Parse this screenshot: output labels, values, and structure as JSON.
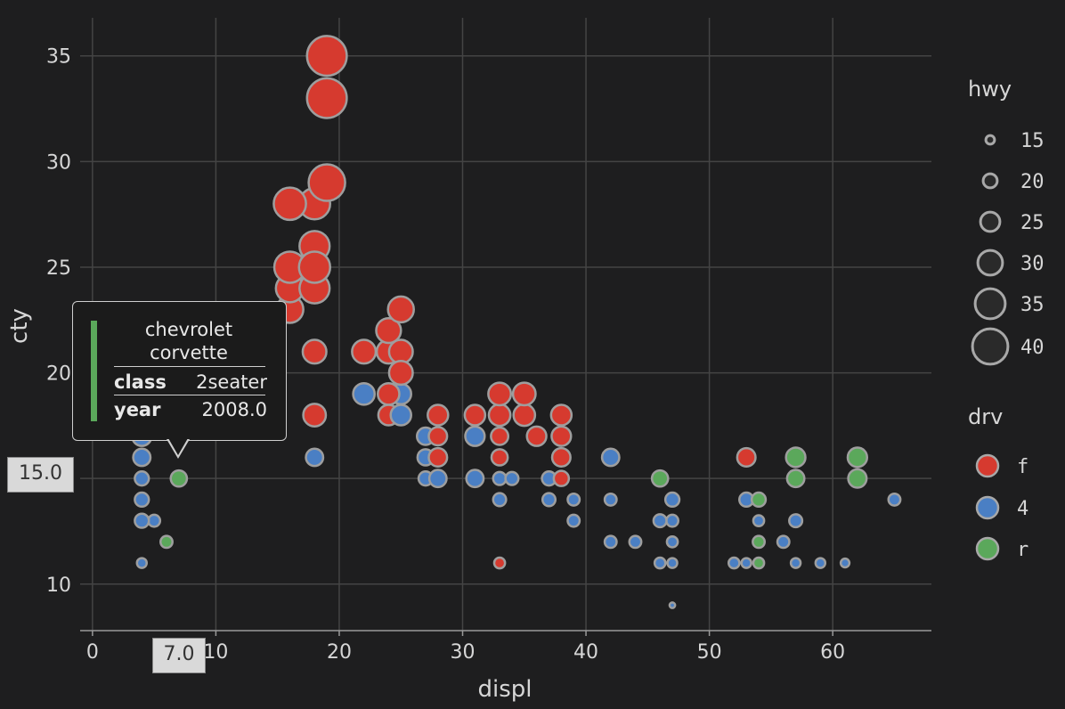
{
  "chart_data": {
    "type": "scatter",
    "xlabel": "displ",
    "ylabel": "cty",
    "xlim": [
      -1,
      68
    ],
    "ylim": [
      7.8,
      36.8
    ],
    "x_ticks": [
      0,
      10,
      20,
      30,
      40,
      50,
      60
    ],
    "y_ticks": [
      10,
      15,
      20,
      25,
      30,
      35
    ],
    "grid": true,
    "size_legend": {
      "title": "hwy",
      "values": [
        15,
        20,
        25,
        30,
        35,
        40
      ]
    },
    "color_legend": {
      "title": "drv",
      "entries": [
        {
          "label": "f",
          "color": "#d63a2f"
        },
        {
          "label": "4",
          "color": "#4a7fc4"
        },
        {
          "label": "r",
          "color": "#5ba85b"
        }
      ]
    },
    "points": [
      {
        "displ": 19,
        "cty": 35,
        "hwy": 44,
        "drv": "f"
      },
      {
        "displ": 19,
        "cty": 33,
        "hwy": 44,
        "drv": "f"
      },
      {
        "displ": 19,
        "cty": 29,
        "hwy": 41,
        "drv": "f"
      },
      {
        "displ": 16,
        "cty": 28,
        "hwy": 37,
        "drv": "f"
      },
      {
        "displ": 18,
        "cty": 28,
        "hwy": 36,
        "drv": "f"
      },
      {
        "displ": 18,
        "cty": 26,
        "hwy": 35,
        "drv": "f"
      },
      {
        "displ": 16,
        "cty": 25,
        "hwy": 36,
        "drv": "f"
      },
      {
        "displ": 18,
        "cty": 25,
        "hwy": 36,
        "drv": "f"
      },
      {
        "displ": 16,
        "cty": 24,
        "hwy": 33,
        "drv": "f"
      },
      {
        "displ": 18,
        "cty": 24,
        "hwy": 35,
        "drv": "f"
      },
      {
        "displ": 16,
        "cty": 23,
        "hwy": 32,
        "drv": "f"
      },
      {
        "displ": 25,
        "cty": 23,
        "hwy": 31,
        "drv": "f"
      },
      {
        "displ": 24,
        "cty": 22,
        "hwy": 30,
        "drv": "f"
      },
      {
        "displ": 18,
        "cty": 21,
        "hwy": 29,
        "drv": "f"
      },
      {
        "displ": 22,
        "cty": 21,
        "hwy": 29,
        "drv": "f"
      },
      {
        "displ": 24,
        "cty": 21,
        "hwy": 29,
        "drv": "f"
      },
      {
        "displ": 25,
        "cty": 21,
        "hwy": 29,
        "drv": "f"
      },
      {
        "displ": 25,
        "cty": 20,
        "hwy": 29,
        "drv": "f"
      },
      {
        "displ": 22,
        "cty": 19,
        "hwy": 27,
        "drv": "4"
      },
      {
        "displ": 24,
        "cty": 19,
        "hwy": 27,
        "drv": "f"
      },
      {
        "displ": 25,
        "cty": 19,
        "hwy": 26,
        "drv": "4"
      },
      {
        "displ": 33,
        "cty": 19,
        "hwy": 28,
        "drv": "f"
      },
      {
        "displ": 35,
        "cty": 19,
        "hwy": 28,
        "drv": "f"
      },
      {
        "displ": 18,
        "cty": 18,
        "hwy": 28,
        "drv": "f"
      },
      {
        "displ": 24,
        "cty": 18,
        "hwy": 26,
        "drv": "f"
      },
      {
        "displ": 25,
        "cty": 18,
        "hwy": 26,
        "drv": "4"
      },
      {
        "displ": 28,
        "cty": 18,
        "hwy": 26,
        "drv": "f"
      },
      {
        "displ": 31,
        "cty": 18,
        "hwy": 26,
        "drv": "f"
      },
      {
        "displ": 33,
        "cty": 18,
        "hwy": 27,
        "drv": "f"
      },
      {
        "displ": 35,
        "cty": 18,
        "hwy": 27,
        "drv": "f"
      },
      {
        "displ": 38,
        "cty": 18,
        "hwy": 26,
        "drv": "f"
      },
      {
        "displ": 4,
        "cty": 17,
        "hwy": 25,
        "drv": "4"
      },
      {
        "displ": 27,
        "cty": 17,
        "hwy": 23,
        "drv": "4"
      },
      {
        "displ": 28,
        "cty": 17,
        "hwy": 24,
        "drv": "f"
      },
      {
        "displ": 31,
        "cty": 17,
        "hwy": 25,
        "drv": "4"
      },
      {
        "displ": 33,
        "cty": 17,
        "hwy": 23,
        "drv": "f"
      },
      {
        "displ": 36,
        "cty": 17,
        "hwy": 25,
        "drv": "f"
      },
      {
        "displ": 38,
        "cty": 17,
        "hwy": 25,
        "drv": "f"
      },
      {
        "displ": 4,
        "cty": 16,
        "hwy": 23,
        "drv": "4"
      },
      {
        "displ": 18,
        "cty": 16,
        "hwy": 23,
        "drv": "4"
      },
      {
        "displ": 27,
        "cty": 16,
        "hwy": 22,
        "drv": "4"
      },
      {
        "displ": 28,
        "cty": 16,
        "hwy": 24,
        "drv": "f"
      },
      {
        "displ": 33,
        "cty": 16,
        "hwy": 22,
        "drv": "f"
      },
      {
        "displ": 38,
        "cty": 16,
        "hwy": 24,
        "drv": "f"
      },
      {
        "displ": 42,
        "cty": 16,
        "hwy": 23,
        "drv": "4"
      },
      {
        "displ": 53,
        "cty": 16,
        "hwy": 24,
        "drv": "f"
      },
      {
        "displ": 57,
        "cty": 16,
        "hwy": 25,
        "drv": "r"
      },
      {
        "displ": 62,
        "cty": 16,
        "hwy": 25,
        "drv": "r"
      },
      {
        "displ": 4,
        "cty": 15,
        "hwy": 20,
        "drv": "4"
      },
      {
        "displ": 7,
        "cty": 15,
        "hwy": 22,
        "drv": "r"
      },
      {
        "displ": 27,
        "cty": 15,
        "hwy": 20,
        "drv": "4"
      },
      {
        "displ": 28,
        "cty": 15,
        "hwy": 23,
        "drv": "4"
      },
      {
        "displ": 31,
        "cty": 15,
        "hwy": 23,
        "drv": "4"
      },
      {
        "displ": 33,
        "cty": 15,
        "hwy": 19,
        "drv": "4"
      },
      {
        "displ": 34,
        "cty": 15,
        "hwy": 19,
        "drv": "4"
      },
      {
        "displ": 37,
        "cty": 15,
        "hwy": 20,
        "drv": "4"
      },
      {
        "displ": 38,
        "cty": 15,
        "hwy": 21,
        "drv": "f"
      },
      {
        "displ": 46,
        "cty": 15,
        "hwy": 22,
        "drv": "r"
      },
      {
        "displ": 57,
        "cty": 15,
        "hwy": 23,
        "drv": "r"
      },
      {
        "displ": 62,
        "cty": 15,
        "hwy": 24,
        "drv": "r"
      },
      {
        "displ": 4,
        "cty": 14,
        "hwy": 20,
        "drv": "4"
      },
      {
        "displ": 33,
        "cty": 14,
        "hwy": 19,
        "drv": "4"
      },
      {
        "displ": 37,
        "cty": 14,
        "hwy": 19,
        "drv": "4"
      },
      {
        "displ": 39,
        "cty": 14,
        "hwy": 18,
        "drv": "4"
      },
      {
        "displ": 42,
        "cty": 14,
        "hwy": 18,
        "drv": "4"
      },
      {
        "displ": 47,
        "cty": 14,
        "hwy": 20,
        "drv": "4"
      },
      {
        "displ": 53,
        "cty": 14,
        "hwy": 20,
        "drv": "4"
      },
      {
        "displ": 54,
        "cty": 14,
        "hwy": 20,
        "drv": "r"
      },
      {
        "displ": 65,
        "cty": 14,
        "hwy": 18,
        "drv": "4"
      },
      {
        "displ": 4,
        "cty": 13,
        "hwy": 20,
        "drv": "4"
      },
      {
        "displ": 5,
        "cty": 13,
        "hwy": 18,
        "drv": "4"
      },
      {
        "displ": 39,
        "cty": 13,
        "hwy": 18,
        "drv": "4"
      },
      {
        "displ": 46,
        "cty": 13,
        "hwy": 19,
        "drv": "4"
      },
      {
        "displ": 47,
        "cty": 13,
        "hwy": 18,
        "drv": "4"
      },
      {
        "displ": 54,
        "cty": 13,
        "hwy": 17,
        "drv": "4"
      },
      {
        "displ": 57,
        "cty": 13,
        "hwy": 19,
        "drv": "4"
      },
      {
        "displ": 6,
        "cty": 12,
        "hwy": 18,
        "drv": "r"
      },
      {
        "displ": 42,
        "cty": 12,
        "hwy": 18,
        "drv": "4"
      },
      {
        "displ": 44,
        "cty": 12,
        "hwy": 18,
        "drv": "4"
      },
      {
        "displ": 47,
        "cty": 12,
        "hwy": 17,
        "drv": "4"
      },
      {
        "displ": 54,
        "cty": 12,
        "hwy": 18,
        "drv": "r"
      },
      {
        "displ": 56,
        "cty": 12,
        "hwy": 18,
        "drv": "4"
      },
      {
        "displ": 4,
        "cty": 11,
        "hwy": 16,
        "drv": "4"
      },
      {
        "displ": 33,
        "cty": 11,
        "hwy": 17,
        "drv": "f"
      },
      {
        "displ": 46,
        "cty": 11,
        "hwy": 17,
        "drv": "4"
      },
      {
        "displ": 47,
        "cty": 11,
        "hwy": 16,
        "drv": "4"
      },
      {
        "displ": 52,
        "cty": 11,
        "hwy": 17,
        "drv": "4"
      },
      {
        "displ": 53,
        "cty": 11,
        "hwy": 16,
        "drv": "4"
      },
      {
        "displ": 54,
        "cty": 11,
        "hwy": 17,
        "drv": "r"
      },
      {
        "displ": 57,
        "cty": 11,
        "hwy": 16,
        "drv": "4"
      },
      {
        "displ": 59,
        "cty": 11,
        "hwy": 16,
        "drv": "4"
      },
      {
        "displ": 61,
        "cty": 11,
        "hwy": 15,
        "drv": "4"
      },
      {
        "displ": 47,
        "cty": 9,
        "hwy": 12,
        "drv": "4"
      }
    ],
    "tooltip": {
      "title_line1": "chevrolet",
      "title_line2": "corvette",
      "rows": [
        {
          "key": "class",
          "value": "2seater"
        },
        {
          "key": "year",
          "value": "2008.0"
        }
      ],
      "accent_color": "#5ba85b",
      "x_badge": "7.0",
      "y_badge": "15.0",
      "anchor": {
        "displ": 7,
        "cty": 15
      }
    }
  }
}
